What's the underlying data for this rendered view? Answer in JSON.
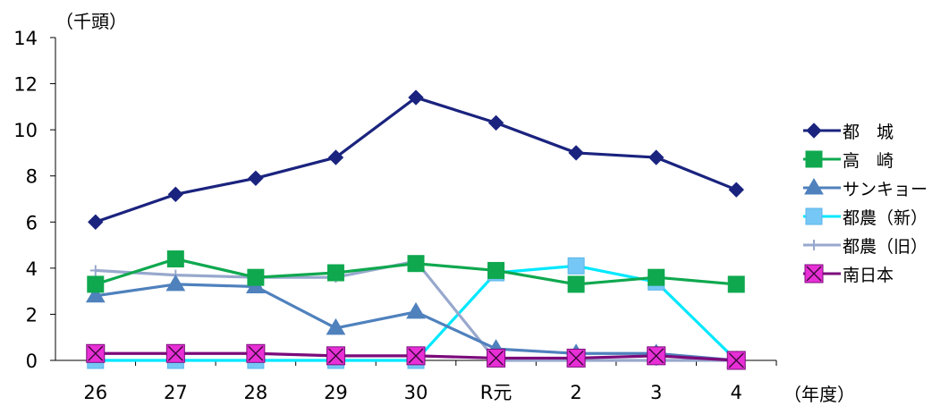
{
  "chart_data": {
    "type": "line",
    "y_unit": "（千頭）",
    "x_unit": "（年度）",
    "categories": [
      "26",
      "27",
      "28",
      "29",
      "30",
      "R元",
      "2",
      "3",
      "4"
    ],
    "ylim": [
      0,
      14
    ],
    "yticks": [
      0,
      2,
      4,
      6,
      8,
      10,
      12,
      14
    ],
    "grid": false,
    "legend_position": "right",
    "series": [
      {
        "name": "都　城",
        "color": "#1a237e",
        "marker": "diamond",
        "values": [
          6.0,
          7.2,
          7.9,
          8.8,
          11.4,
          10.3,
          9.0,
          8.8,
          7.4
        ]
      },
      {
        "name": "高　崎",
        "color": "#0fa84f",
        "marker": "square",
        "values": [
          3.3,
          4.4,
          3.6,
          3.8,
          4.2,
          3.9,
          3.3,
          3.6,
          3.3
        ]
      },
      {
        "name": "サンキョー",
        "color": "#4f81bd",
        "marker": "triangle",
        "values": [
          2.8,
          3.3,
          3.2,
          1.4,
          2.1,
          0.5,
          0.3,
          0.3,
          0.0
        ]
      },
      {
        "name": "都農（新）",
        "color": "#00e8ff",
        "marker": "square-light",
        "values": [
          0.0,
          0.0,
          0.0,
          0.0,
          0.0,
          3.8,
          4.1,
          3.4,
          0.0
        ]
      },
      {
        "name": "都農（旧）",
        "color": "#98a8cd",
        "marker": "plus",
        "values": [
          3.9,
          3.7,
          3.6,
          3.6,
          4.3,
          0.0,
          0.0,
          0.0,
          0.0
        ]
      },
      {
        "name": "南日本",
        "color": "#7b0b7b",
        "marker": "x-square",
        "values": [
          0.3,
          0.3,
          0.3,
          0.2,
          0.2,
          0.1,
          0.1,
          0.2,
          0.0
        ]
      }
    ]
  }
}
